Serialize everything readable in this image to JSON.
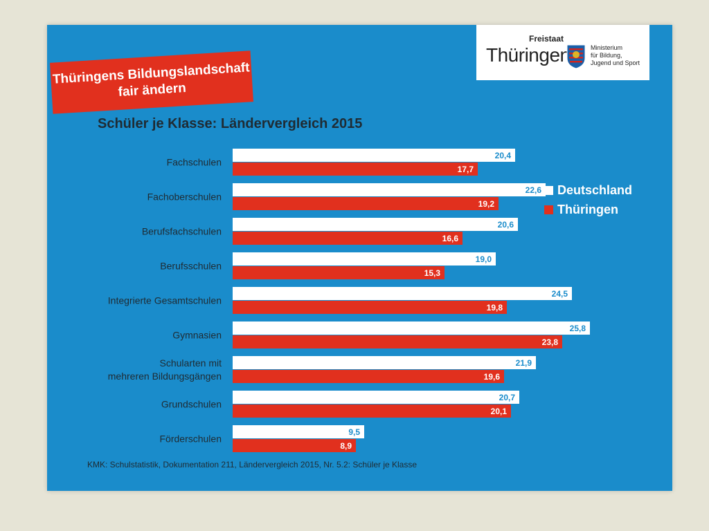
{
  "banner": {
    "line1": "Thüringens Bildungslandschaft",
    "line2": "fair ändern"
  },
  "logo": {
    "freistaat": "Freistaat",
    "thueringen": "Thüringen",
    "ministry_line1": "Ministerium",
    "ministry_line2": "für Bildung,",
    "ministry_line3": "Jugend und Sport"
  },
  "source": "KMK: Schulstatistik, Dokumentation 211, Ländervergleich 2015, Nr. 5.2: Schüler je Klasse",
  "chart_data": {
    "type": "bar",
    "orientation": "horizontal",
    "title": "Schüler je Klasse: Ländervergleich 2015",
    "categories": [
      "Fachschulen",
      "Fachoberschulen",
      "Berufsfachschulen",
      "Berufsschulen",
      "Integrierte Gesamtschulen",
      "Gymnasien",
      "Schularten mit mehreren Bildungsgängen",
      "Grundschulen",
      "Förderschulen"
    ],
    "series": [
      {
        "name": "Deutschland",
        "color": "#ffffff",
        "label_color": "#1a8ccb",
        "values": [
          20.4,
          22.6,
          20.6,
          19.0,
          24.5,
          25.8,
          21.9,
          20.7,
          9.5
        ],
        "labels": [
          "20,4",
          "22,6",
          "20,6",
          "19,0",
          "24,5",
          "25,8",
          "21,9",
          "20,7",
          "9,5"
        ]
      },
      {
        "name": "Thüringen",
        "color": "#e1301e",
        "label_color": "#ffffff",
        "values": [
          17.7,
          19.2,
          16.6,
          15.3,
          19.8,
          23.8,
          19.6,
          20.1,
          8.9
        ],
        "labels": [
          "17,7",
          "19,2",
          "16,6",
          "15,3",
          "19,8",
          "23,8",
          "19,6",
          "20,1",
          "8,9"
        ]
      }
    ],
    "xlim": [
      0,
      26.5
    ],
    "grid": false,
    "legend_position": "right"
  }
}
